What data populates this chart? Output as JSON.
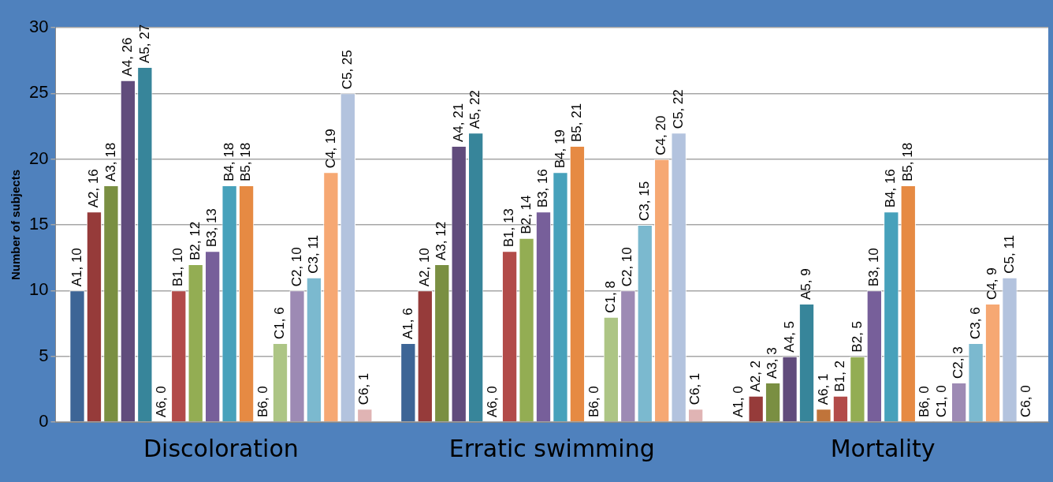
{
  "chart_data": {
    "type": "bar",
    "ylabel": "Number of subjects",
    "categories": [
      "Discoloration",
      "Erratic swimming",
      "Mortality"
    ],
    "ylim": [
      0,
      30
    ],
    "yticks": [
      0,
      5,
      10,
      15,
      20,
      25,
      30
    ],
    "grid": "y",
    "legend": false,
    "series": [
      {
        "color": "#3d6596",
        "values": [
          10,
          6,
          0
        ],
        "value_labels": [
          "A1, 10",
          "A1, 6",
          "A1, 0"
        ]
      },
      {
        "color": "#963b3a",
        "values": [
          16,
          10,
          2
        ],
        "value_labels": [
          "A2, 16",
          "A2, 10",
          "A2, 2"
        ]
      },
      {
        "color": "#7a8f42",
        "values": [
          18,
          12,
          3
        ],
        "value_labels": [
          "A3, 18",
          "A3, 12",
          "A3, 3"
        ]
      },
      {
        "color": "#614c7c",
        "values": [
          26,
          21,
          5
        ],
        "value_labels": [
          "A4, 26",
          "A4, 21",
          "A4, 5"
        ]
      },
      {
        "color": "#37859a",
        "values": [
          27,
          22,
          9
        ],
        "value_labels": [
          "A5, 27",
          "A5, 22",
          "A5, 9"
        ]
      },
      {
        "color": "#c0743a",
        "values": [
          0,
          0,
          1
        ],
        "value_labels": [
          "A6, 0",
          "A6, 0",
          "A6, 1"
        ]
      },
      {
        "color": "#b24b49",
        "values": [
          10,
          13,
          2
        ],
        "value_labels": [
          "B1, 10",
          "B1, 13",
          "B1, 2"
        ]
      },
      {
        "color": "#93ad53",
        "values": [
          12,
          14,
          5
        ],
        "value_labels": [
          "B2, 12",
          "B2, 14",
          "B2, 5"
        ]
      },
      {
        "color": "#775f9a",
        "values": [
          13,
          16,
          10
        ],
        "value_labels": [
          "B3, 13",
          "B3, 16",
          "B3, 10"
        ]
      },
      {
        "color": "#47a1bb",
        "values": [
          18,
          19,
          16
        ],
        "value_labels": [
          "B4, 18",
          "B4, 19",
          "B4, 16"
        ]
      },
      {
        "color": "#e68a43",
        "values": [
          18,
          21,
          18
        ],
        "value_labels": [
          "B5, 18",
          "B5, 21",
          "B5, 18"
        ]
      },
      {
        "values": [
          0,
          0,
          0
        ],
        "value_labels": [
          "B6, 0",
          "B6, 0",
          "B6, 0"
        ]
      },
      {
        "color": "#adc585",
        "values": [
          6,
          8,
          0
        ],
        "value_labels": [
          "C1, 6",
          "C1, 8",
          "C1, 0"
        ]
      },
      {
        "color": "#9d8ab4",
        "values": [
          10,
          10,
          3
        ],
        "value_labels": [
          "C2, 10",
          "C2, 10",
          "C2, 3"
        ]
      },
      {
        "color": "#7bb9cf",
        "values": [
          11,
          15,
          6
        ],
        "value_labels": [
          "C3, 11",
          "C3, 15",
          "C3, 6"
        ]
      },
      {
        "color": "#f6a873",
        "values": [
          19,
          20,
          9
        ],
        "value_labels": [
          "C4, 19",
          "C4, 20",
          "C4, 9"
        ]
      },
      {
        "color": "#b3c3de",
        "values": [
          25,
          22,
          11
        ],
        "value_labels": [
          "C5, 25",
          "C5, 22",
          "C5, 11"
        ]
      },
      {
        "color": "#e0b4b4",
        "values": [
          1,
          1,
          0
        ],
        "value_labels": [
          "C6, 1",
          "C6, 1",
          "C6, 0"
        ]
      }
    ]
  }
}
